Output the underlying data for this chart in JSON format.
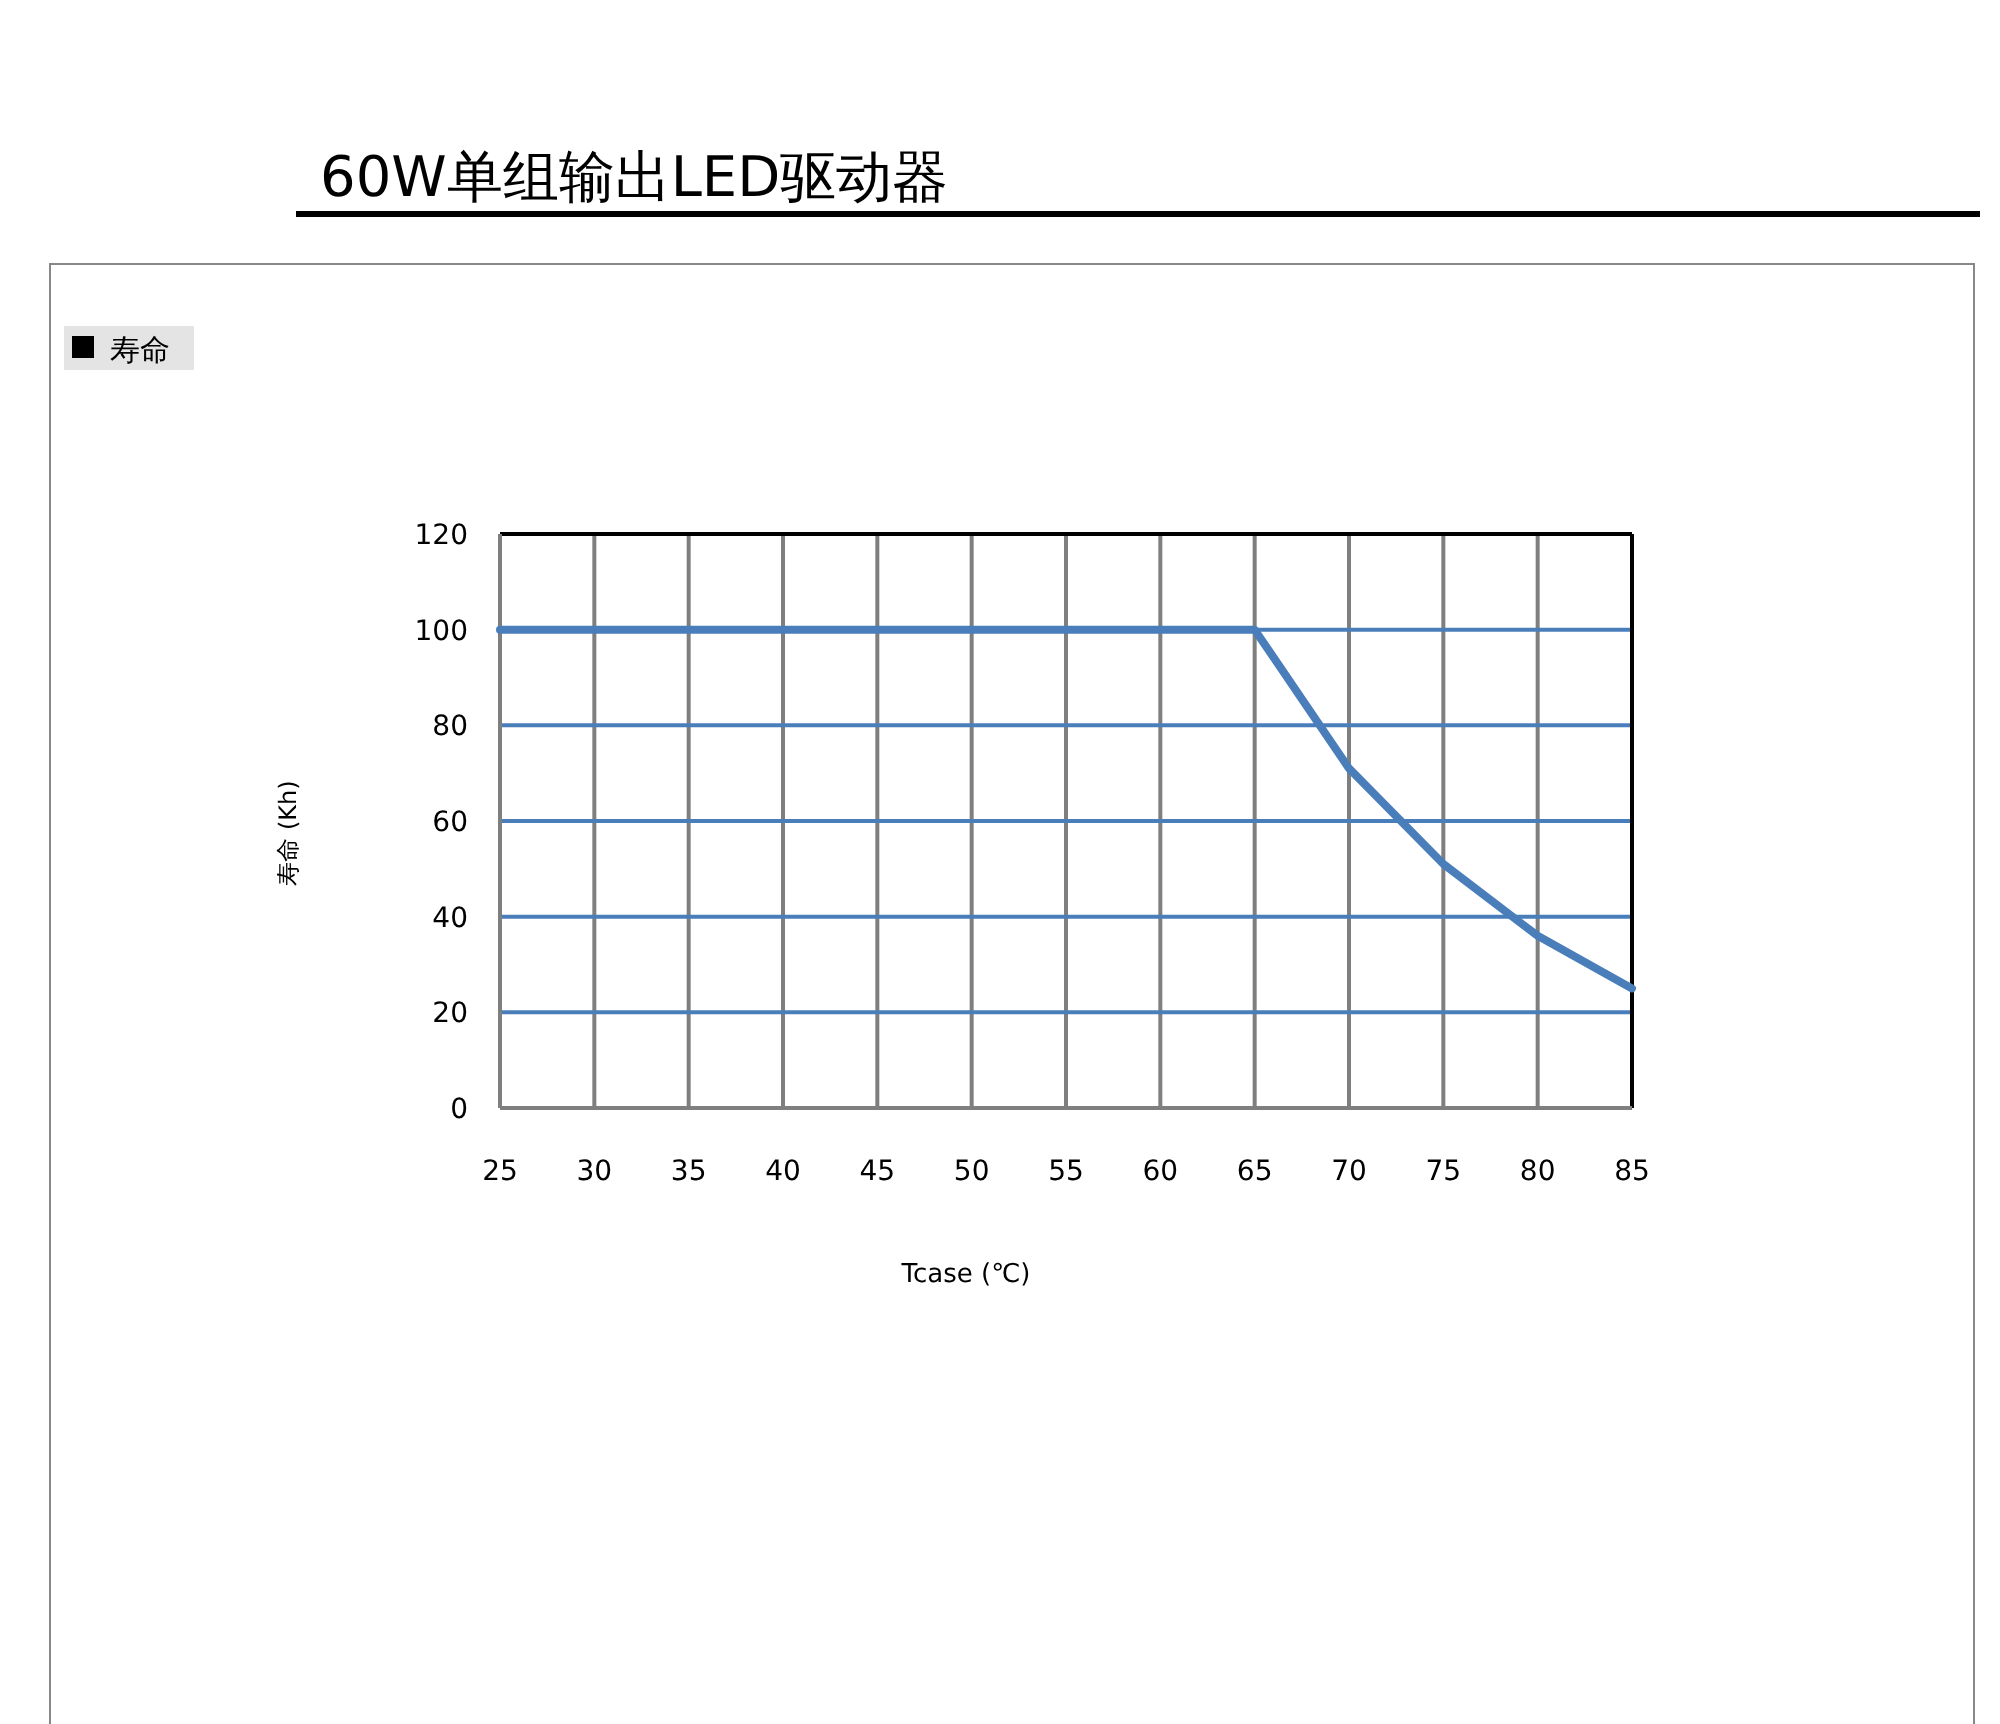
{
  "chart_data": {
    "type": "line",
    "title": "60W单组输出LED驱动器",
    "subtitle": "寿命",
    "xlabel": "Tcase (℃)",
    "ylabel": "寿命 (Kh)",
    "x": [
      25,
      65,
      70,
      75,
      80,
      85
    ],
    "series": [
      {
        "color": "#4a7ebb",
        "values": [
          100,
          100,
          71,
          51,
          36,
          25
        ]
      }
    ],
    "xlim": [
      25,
      85
    ],
    "xticks": [
      25,
      30,
      35,
      40,
      45,
      50,
      55,
      60,
      65,
      70,
      75,
      80,
      85
    ],
    "ylim": [
      0,
      120
    ],
    "yticks": [
      0,
      20,
      40,
      60,
      80,
      100,
      120
    ],
    "grid": true,
    "marker": "none",
    "line_style": "solid"
  }
}
